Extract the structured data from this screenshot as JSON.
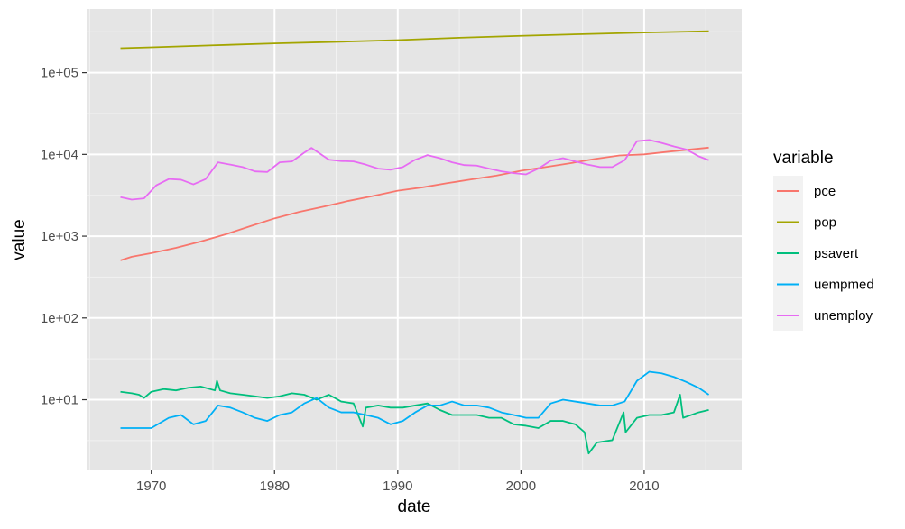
{
  "chart_data": {
    "type": "line",
    "xlabel": "date",
    "ylabel": "value",
    "x_scale": "date",
    "y_scale": "log10",
    "xlim": [
      "1964-10-01",
      "2017-12-01"
    ],
    "ylim": [
      1.4,
      600000
    ],
    "x_ticks": [
      "1970-01-01",
      "1980-01-01",
      "1990-01-01",
      "2000-01-01",
      "2010-01-01"
    ],
    "x_tick_labels": [
      "1970",
      "1980",
      "1990",
      "2000",
      "2010"
    ],
    "y_ticks": [
      10,
      100,
      1000,
      10000,
      100000
    ],
    "y_tick_labels": [
      "1e+01",
      "1e+02",
      "1e+03",
      "1e+04",
      "1e+05"
    ],
    "grid": true,
    "background": "#e5e5e5",
    "legend": {
      "title": "variable",
      "position": "right"
    },
    "series": [
      {
        "name": "pce",
        "color": "#F8766D",
        "points": [
          [
            "1967-07-01",
            507
          ],
          [
            "1968-06-01",
            560
          ],
          [
            "1970-01-01",
            620
          ],
          [
            "1972-01-01",
            720
          ],
          [
            "1974-01-01",
            860
          ],
          [
            "1976-01-01",
            1050
          ],
          [
            "1978-01-01",
            1320
          ],
          [
            "1980-01-01",
            1650
          ],
          [
            "1982-01-01",
            1980
          ],
          [
            "1984-01-01",
            2300
          ],
          [
            "1986-01-01",
            2700
          ],
          [
            "1988-01-01",
            3100
          ],
          [
            "1990-01-01",
            3600
          ],
          [
            "1992-01-01",
            3950
          ],
          [
            "1994-01-01",
            4450
          ],
          [
            "1996-01-01",
            4950
          ],
          [
            "1998-01-01",
            5500
          ],
          [
            "2000-01-01",
            6300
          ],
          [
            "2002-01-01",
            7000
          ],
          [
            "2004-01-01",
            7800
          ],
          [
            "2006-01-01",
            8800
          ],
          [
            "2008-01-01",
            9700
          ],
          [
            "2010-01-01",
            10000
          ],
          [
            "2012-01-01",
            10800
          ],
          [
            "2015-04-01",
            12100
          ]
        ]
      },
      {
        "name": "pop",
        "color": "#A3A500",
        "points": [
          [
            "1967-07-01",
            199000
          ],
          [
            "1970-01-01",
            204000
          ],
          [
            "1975-01-01",
            216000
          ],
          [
            "1980-01-01",
            228000
          ],
          [
            "1985-01-01",
            238000
          ],
          [
            "1990-01-01",
            250000
          ],
          [
            "1995-01-01",
            267000
          ],
          [
            "2000-01-01",
            282000
          ],
          [
            "2005-01-01",
            296000
          ],
          [
            "2010-01-01",
            309000
          ],
          [
            "2015-04-01",
            321000
          ]
        ]
      },
      {
        "name": "psavert",
        "color": "#00BF7D",
        "points": [
          [
            "1967-07-01",
            12.5
          ],
          [
            "1968-06-01",
            12.0
          ],
          [
            "1969-01-01",
            11.5
          ],
          [
            "1969-06-01",
            10.5
          ],
          [
            "1970-01-01",
            12.5
          ],
          [
            "1971-01-01",
            13.5
          ],
          [
            "1972-01-01",
            13.0
          ],
          [
            "1973-01-01",
            14.0
          ],
          [
            "1974-01-01",
            14.5
          ],
          [
            "1975-03-01",
            13.0
          ],
          [
            "1975-05-01",
            17.0
          ],
          [
            "1975-08-01",
            13.0
          ],
          [
            "1976-06-01",
            12.0
          ],
          [
            "1977-06-01",
            11.5
          ],
          [
            "1978-06-01",
            11.0
          ],
          [
            "1979-06-01",
            10.5
          ],
          [
            "1980-06-01",
            11.0
          ],
          [
            "1981-06-01",
            12.0
          ],
          [
            "1982-06-01",
            11.5
          ],
          [
            "1983-06-01",
            10.0
          ],
          [
            "1984-06-01",
            11.5
          ],
          [
            "1985-06-01",
            9.5
          ],
          [
            "1986-06-01",
            9.0
          ],
          [
            "1987-03-01",
            4.7
          ],
          [
            "1987-06-01",
            8.0
          ],
          [
            "1988-06-01",
            8.5
          ],
          [
            "1989-06-01",
            8.0
          ],
          [
            "1990-06-01",
            8.0
          ],
          [
            "1991-06-01",
            8.5
          ],
          [
            "1992-06-01",
            9.0
          ],
          [
            "1993-06-01",
            7.5
          ],
          [
            "1994-06-01",
            6.5
          ],
          [
            "1995-06-01",
            6.5
          ],
          [
            "1996-06-01",
            6.5
          ],
          [
            "1997-06-01",
            6.0
          ],
          [
            "1998-06-01",
            6.0
          ],
          [
            "1999-06-01",
            5.0
          ],
          [
            "2000-06-01",
            4.8
          ],
          [
            "2001-06-01",
            4.5
          ],
          [
            "2002-06-01",
            5.5
          ],
          [
            "2003-06-01",
            5.5
          ],
          [
            "2004-06-01",
            5.0
          ],
          [
            "2005-03-01",
            4.0
          ],
          [
            "2005-07-01",
            2.2
          ],
          [
            "2006-03-01",
            3.0
          ],
          [
            "2007-06-01",
            3.2
          ],
          [
            "2008-05-01",
            7.0
          ],
          [
            "2008-07-01",
            4.0
          ],
          [
            "2009-06-01",
            6.0
          ],
          [
            "2010-06-01",
            6.5
          ],
          [
            "2011-06-01",
            6.5
          ],
          [
            "2012-06-01",
            7.0
          ],
          [
            "2012-12-01",
            11.5
          ],
          [
            "2013-03-01",
            6.0
          ],
          [
            "2014-06-01",
            7.0
          ],
          [
            "2015-04-01",
            7.5
          ]
        ]
      },
      {
        "name": "uempmed",
        "color": "#00B0F6",
        "points": [
          [
            "1967-07-01",
            4.5
          ],
          [
            "1969-01-01",
            4.5
          ],
          [
            "1970-01-01",
            4.5
          ],
          [
            "1971-06-01",
            6.0
          ],
          [
            "1972-06-01",
            6.5
          ],
          [
            "1973-06-01",
            5.0
          ],
          [
            "1974-06-01",
            5.5
          ],
          [
            "1975-06-01",
            8.5
          ],
          [
            "1976-06-01",
            8.0
          ],
          [
            "1977-06-01",
            7.0
          ],
          [
            "1978-06-01",
            6.0
          ],
          [
            "1979-06-01",
            5.5
          ],
          [
            "1980-06-01",
            6.5
          ],
          [
            "1981-06-01",
            7.0
          ],
          [
            "1982-06-01",
            9.0
          ],
          [
            "1983-06-01",
            10.5
          ],
          [
            "1984-06-01",
            8.0
          ],
          [
            "1985-06-01",
            7.0
          ],
          [
            "1986-06-01",
            7.0
          ],
          [
            "1987-06-01",
            6.5
          ],
          [
            "1988-06-01",
            6.0
          ],
          [
            "1989-06-01",
            5.0
          ],
          [
            "1990-06-01",
            5.5
          ],
          [
            "1991-06-01",
            7.0
          ],
          [
            "1992-06-01",
            8.5
          ],
          [
            "1993-06-01",
            8.5
          ],
          [
            "1994-06-01",
            9.5
          ],
          [
            "1995-06-01",
            8.5
          ],
          [
            "1996-06-01",
            8.5
          ],
          [
            "1997-06-01",
            8.0
          ],
          [
            "1998-06-01",
            7.0
          ],
          [
            "1999-06-01",
            6.5
          ],
          [
            "2000-06-01",
            6.0
          ],
          [
            "2001-06-01",
            6.0
          ],
          [
            "2002-06-01",
            9.0
          ],
          [
            "2003-06-01",
            10.0
          ],
          [
            "2004-06-01",
            9.5
          ],
          [
            "2005-06-01",
            9.0
          ],
          [
            "2006-06-01",
            8.5
          ],
          [
            "2007-06-01",
            8.5
          ],
          [
            "2008-06-01",
            9.5
          ],
          [
            "2009-06-01",
            17.0
          ],
          [
            "2010-06-01",
            22.0
          ],
          [
            "2011-06-01",
            21.0
          ],
          [
            "2012-06-01",
            19.0
          ],
          [
            "2013-06-01",
            16.5
          ],
          [
            "2014-06-01",
            14.0
          ],
          [
            "2015-04-01",
            11.5
          ]
        ]
      },
      {
        "name": "unemploy",
        "color": "#E76BF3",
        "points": [
          [
            "1967-07-01",
            3000
          ],
          [
            "1968-06-01",
            2800
          ],
          [
            "1969-06-01",
            2900
          ],
          [
            "1970-06-01",
            4200
          ],
          [
            "1971-06-01",
            5000
          ],
          [
            "1972-06-01",
            4900
          ],
          [
            "1973-06-01",
            4300
          ],
          [
            "1974-06-01",
            5000
          ],
          [
            "1975-06-01",
            8000
          ],
          [
            "1976-06-01",
            7500
          ],
          [
            "1977-06-01",
            7000
          ],
          [
            "1978-06-01",
            6200
          ],
          [
            "1979-06-01",
            6100
          ],
          [
            "1980-06-01",
            8000
          ],
          [
            "1981-06-01",
            8200
          ],
          [
            "1982-06-01",
            10500
          ],
          [
            "1983-01-01",
            12000
          ],
          [
            "1984-06-01",
            8600
          ],
          [
            "1985-06-01",
            8300
          ],
          [
            "1986-06-01",
            8200
          ],
          [
            "1987-06-01",
            7500
          ],
          [
            "1988-06-01",
            6700
          ],
          [
            "1989-06-01",
            6500
          ],
          [
            "1990-06-01",
            7000
          ],
          [
            "1991-06-01",
            8600
          ],
          [
            "1992-06-01",
            9800
          ],
          [
            "1993-06-01",
            9000
          ],
          [
            "1994-06-01",
            8000
          ],
          [
            "1995-06-01",
            7400
          ],
          [
            "1996-06-01",
            7300
          ],
          [
            "1997-06-01",
            6700
          ],
          [
            "1998-06-01",
            6200
          ],
          [
            "1999-06-01",
            5900
          ],
          [
            "2000-06-01",
            5700
          ],
          [
            "2001-06-01",
            6700
          ],
          [
            "2002-06-01",
            8400
          ],
          [
            "2003-06-01",
            9000
          ],
          [
            "2004-06-01",
            8200
          ],
          [
            "2005-06-01",
            7500
          ],
          [
            "2006-06-01",
            7000
          ],
          [
            "2007-06-01",
            7000
          ],
          [
            "2008-06-01",
            8500
          ],
          [
            "2009-06-01",
            14500
          ],
          [
            "2010-06-01",
            15000
          ],
          [
            "2011-06-01",
            13800
          ],
          [
            "2012-06-01",
            12500
          ],
          [
            "2013-06-01",
            11500
          ],
          [
            "2014-06-01",
            9500
          ],
          [
            "2015-04-01",
            8500
          ]
        ]
      }
    ]
  }
}
